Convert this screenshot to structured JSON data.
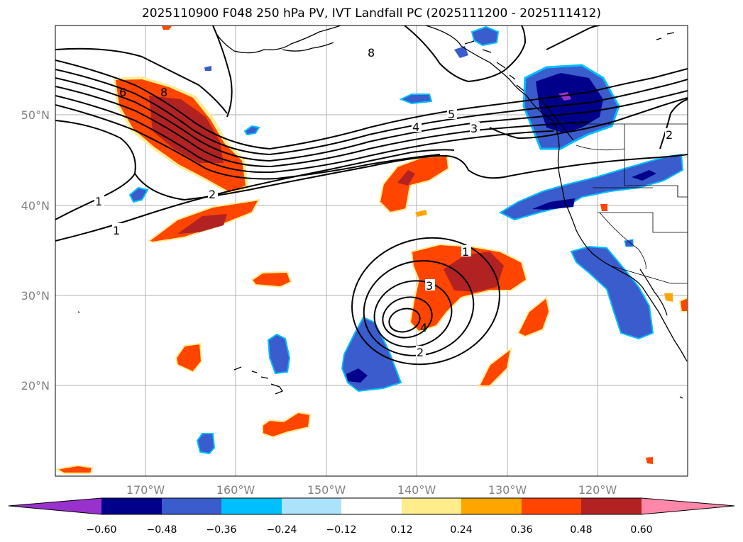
{
  "title": "2025110900 F048 250 hPa PV, IVT Landfall PC (2025111200 - 2025111412)",
  "axes": {
    "lat_labels": [
      "50°N",
      "40°N",
      "30°N",
      "20°N"
    ],
    "lon_labels": [
      "170°W",
      "160°W",
      "150°W",
      "140°W",
      "130°W",
      "120°W"
    ]
  },
  "colorbar": {
    "colors": [
      "#9932CC",
      "#00008B",
      "#3A5CCC",
      "#00BFFF",
      "#ADE3FA",
      "#FFFFFF",
      "#FFEC8B",
      "#FFA500",
      "#FF4500",
      "#B22222",
      "#FF88AA"
    ],
    "ticks": [
      "−0.60",
      "−0.48",
      "−0.36",
      "−0.24",
      "−0.12",
      "0.12",
      "0.24",
      "0.36",
      "0.48",
      "0.60"
    ]
  },
  "contour_labels": [
    "1",
    "1",
    "2",
    "4",
    "5",
    "3",
    "6",
    "8",
    "8",
    "1",
    "3",
    "2",
    "2",
    "4"
  ]
}
